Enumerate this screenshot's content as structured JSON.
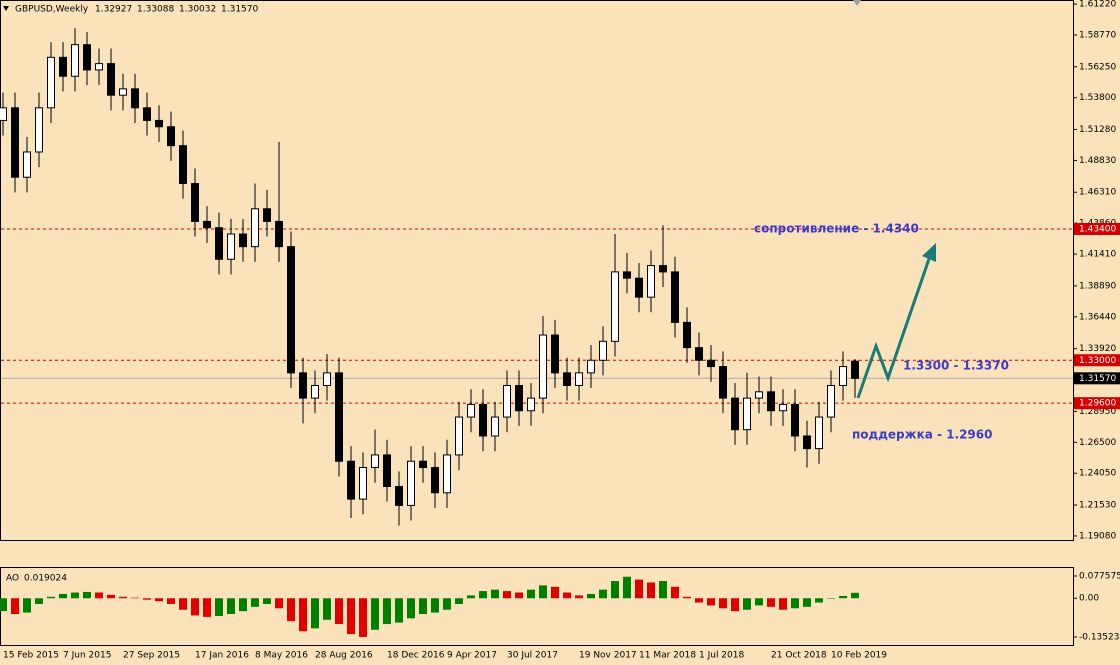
{
  "chart_data": [
    {
      "type": "candlestick",
      "title": "GBPUSD,Weekly",
      "last_bar_labels": [
        "1.32927",
        "1.33088",
        "1.30032",
        "1.31570"
      ],
      "dates": [
        "15 Feb 2015",
        null,
        null,
        null,
        null,
        "7 Jun 2015",
        null,
        null,
        null,
        null,
        "27 Sep 2015",
        null,
        null,
        null,
        null,
        null,
        "17 Jan 2016",
        null,
        null,
        null,
        null,
        "8 May 2016",
        null,
        null,
        null,
        null,
        "28 Aug 2016",
        null,
        null,
        null,
        null,
        null,
        "18 Dec 2016",
        null,
        null,
        null,
        null,
        "9 Apr 2017",
        null,
        null,
        null,
        null,
        "30 Jul 2017",
        null,
        null,
        null,
        null,
        null,
        "19 Nov 2017",
        null,
        null,
        null,
        null,
        "11 Mar 2018",
        null,
        null,
        null,
        null,
        "1 Jul 2018",
        null,
        null,
        null,
        null,
        null,
        "21 Oct 2018",
        null,
        null,
        null,
        null,
        "10 Feb 2019",
        null,
        null
      ],
      "open": [
        1.52,
        1.53,
        1.475,
        1.495,
        1.53,
        1.57,
        1.555,
        1.58,
        1.56,
        1.565,
        1.54,
        1.545,
        1.53,
        1.52,
        1.515,
        1.5,
        1.47,
        1.44,
        1.435,
        1.41,
        1.43,
        1.42,
        1.45,
        1.44,
        1.42,
        1.32,
        1.3,
        1.31,
        1.32,
        1.25,
        1.22,
        1.245,
        1.255,
        1.23,
        1.215,
        1.25,
        1.245,
        1.225,
        1.255,
        1.285,
        1.295,
        1.27,
        1.285,
        1.31,
        1.29,
        1.3,
        1.35,
        1.32,
        1.31,
        1.32,
        1.33,
        1.345,
        1.4,
        1.395,
        1.38,
        1.405,
        1.4,
        1.36,
        1.34,
        1.33,
        1.325,
        1.3,
        1.275,
        1.3,
        1.305,
        1.29,
        1.295,
        1.27,
        1.26,
        1.285,
        1.31,
        1.32927
      ],
      "high": [
        1.542,
        1.542,
        1.507,
        1.542,
        1.582,
        1.582,
        1.593,
        1.59,
        1.577,
        1.577,
        1.557,
        1.557,
        1.542,
        1.532,
        1.527,
        1.512,
        1.482,
        1.452,
        1.447,
        1.442,
        1.442,
        1.47,
        1.465,
        1.503,
        1.432,
        1.332,
        1.322,
        1.335,
        1.332,
        1.262,
        1.257,
        1.275,
        1.267,
        1.242,
        1.262,
        1.262,
        1.257,
        1.267,
        1.297,
        1.307,
        1.307,
        1.297,
        1.322,
        1.322,
        1.312,
        1.365,
        1.362,
        1.332,
        1.332,
        1.342,
        1.357,
        1.43,
        1.415,
        1.407,
        1.417,
        1.437,
        1.412,
        1.372,
        1.352,
        1.342,
        1.337,
        1.312,
        1.32,
        1.317,
        1.317,
        1.307,
        1.307,
        1.282,
        1.297,
        1.322,
        1.337,
        1.33088
      ],
      "low": [
        1.508,
        1.463,
        1.463,
        1.483,
        1.518,
        1.543,
        1.543,
        1.548,
        1.548,
        1.528,
        1.528,
        1.518,
        1.508,
        1.503,
        1.488,
        1.458,
        1.428,
        1.423,
        1.398,
        1.398,
        1.408,
        1.408,
        1.428,
        1.408,
        1.308,
        1.28,
        1.288,
        1.298,
        1.238,
        1.205,
        1.208,
        1.233,
        1.218,
        1.199,
        1.203,
        1.233,
        1.213,
        1.213,
        1.243,
        1.273,
        1.258,
        1.258,
        1.273,
        1.278,
        1.278,
        1.288,
        1.308,
        1.298,
        1.298,
        1.308,
        1.318,
        1.333,
        1.383,
        1.368,
        1.368,
        1.388,
        1.348,
        1.328,
        1.318,
        1.313,
        1.288,
        1.263,
        1.263,
        1.288,
        1.278,
        1.278,
        1.258,
        1.245,
        1.248,
        1.273,
        1.298,
        1.30032
      ],
      "close": [
        1.53,
        1.475,
        1.495,
        1.53,
        1.57,
        1.555,
        1.58,
        1.56,
        1.565,
        1.54,
        1.545,
        1.53,
        1.52,
        1.515,
        1.5,
        1.47,
        1.44,
        1.435,
        1.41,
        1.43,
        1.42,
        1.45,
        1.44,
        1.42,
        1.32,
        1.3,
        1.31,
        1.32,
        1.25,
        1.22,
        1.245,
        1.255,
        1.23,
        1.215,
        1.25,
        1.245,
        1.225,
        1.255,
        1.285,
        1.295,
        1.27,
        1.285,
        1.31,
        1.29,
        1.3,
        1.35,
        1.32,
        1.31,
        1.32,
        1.33,
        1.345,
        1.4,
        1.395,
        1.38,
        1.405,
        1.4,
        1.36,
        1.34,
        1.33,
        1.325,
        1.3,
        1.275,
        1.3,
        1.305,
        1.29,
        1.295,
        1.27,
        1.26,
        1.285,
        1.31,
        1.325,
        1.3157
      ],
      "ylim": [
        1.1876,
        1.6154
      ],
      "yticks": [
        {
          "value": 1.6122,
          "label": "1.61220"
        },
        {
          "value": 1.5877,
          "label": "1.58770"
        },
        {
          "value": 1.5625,
          "label": "1.56250"
        },
        {
          "value": 1.538,
          "label": "1.53800"
        },
        {
          "value": 1.5128,
          "label": "1.51280"
        },
        {
          "value": 1.4883,
          "label": "1.48830"
        },
        {
          "value": 1.4631,
          "label": "1.46310"
        },
        {
          "value": 1.4386,
          "label": "1.43860"
        },
        {
          "value": 1.4141,
          "label": "1.41410"
        },
        {
          "value": 1.3889,
          "label": "1.38890"
        },
        {
          "value": 1.3644,
          "label": "1.36440"
        },
        {
          "value": 1.3392,
          "label": "1.33920"
        },
        {
          "value": 1.3147,
          "label": "1.31470"
        },
        {
          "value": 1.2895,
          "label": "1.28950"
        },
        {
          "value": 1.265,
          "label": "1.26500"
        },
        {
          "value": 1.2405,
          "label": "1.24050"
        },
        {
          "value": 1.2153,
          "label": "1.21530"
        },
        {
          "value": 1.1908,
          "label": "1.19080"
        }
      ],
      "levels": [
        {
          "value": 1.434,
          "label": "1.43400",
          "color": "#d40000",
          "dashed": true
        },
        {
          "value": 1.33,
          "label": "1.33000",
          "color": "#d40000",
          "dashed": true
        },
        {
          "value": 1.3157,
          "label": "1.31570",
          "color": "#000000",
          "dashed": false
        },
        {
          "value": 1.296,
          "label": "1.29600",
          "color": "#d40000",
          "dashed": true
        }
      ],
      "annotations": [
        "сопротивление - 1.4340",
        "1.3300 - 1.3370",
        "поддержка - 1.2960"
      ]
    },
    {
      "type": "histogram",
      "name": "AO",
      "up_color": "#008000",
      "down_color": "#e00000",
      "values": [
        -0.045,
        -0.055,
        -0.05,
        -0.02,
        0.005,
        0.015,
        0.02,
        0.022,
        0.02,
        0.012,
        0.005,
        0.002,
        -0.005,
        -0.01,
        -0.02,
        -0.04,
        -0.06,
        -0.065,
        -0.062,
        -0.055,
        -0.045,
        -0.03,
        -0.02,
        -0.035,
        -0.08,
        -0.115,
        -0.105,
        -0.075,
        -0.09,
        -0.125,
        -0.135,
        -0.11,
        -0.09,
        -0.085,
        -0.07,
        -0.055,
        -0.05,
        -0.04,
        -0.02,
        0.01,
        0.025,
        0.03,
        0.025,
        0.02,
        0.03,
        0.045,
        0.04,
        0.02,
        0.01,
        0.015,
        0.03,
        0.06,
        0.075,
        0.065,
        0.055,
        0.06,
        0.04,
        0.005,
        -0.015,
        -0.025,
        -0.035,
        -0.045,
        -0.04,
        -0.025,
        -0.03,
        -0.04,
        -0.035,
        -0.03,
        -0.015,
        0,
        0.008,
        0.019024
      ],
      "ylim": [
        -0.1631,
        0.109
      ],
      "yticks": [
        0.077575,
        {
          "value": 0,
          "label": "0.00"
        },
        -0.135232
      ]
    }
  ]
}
